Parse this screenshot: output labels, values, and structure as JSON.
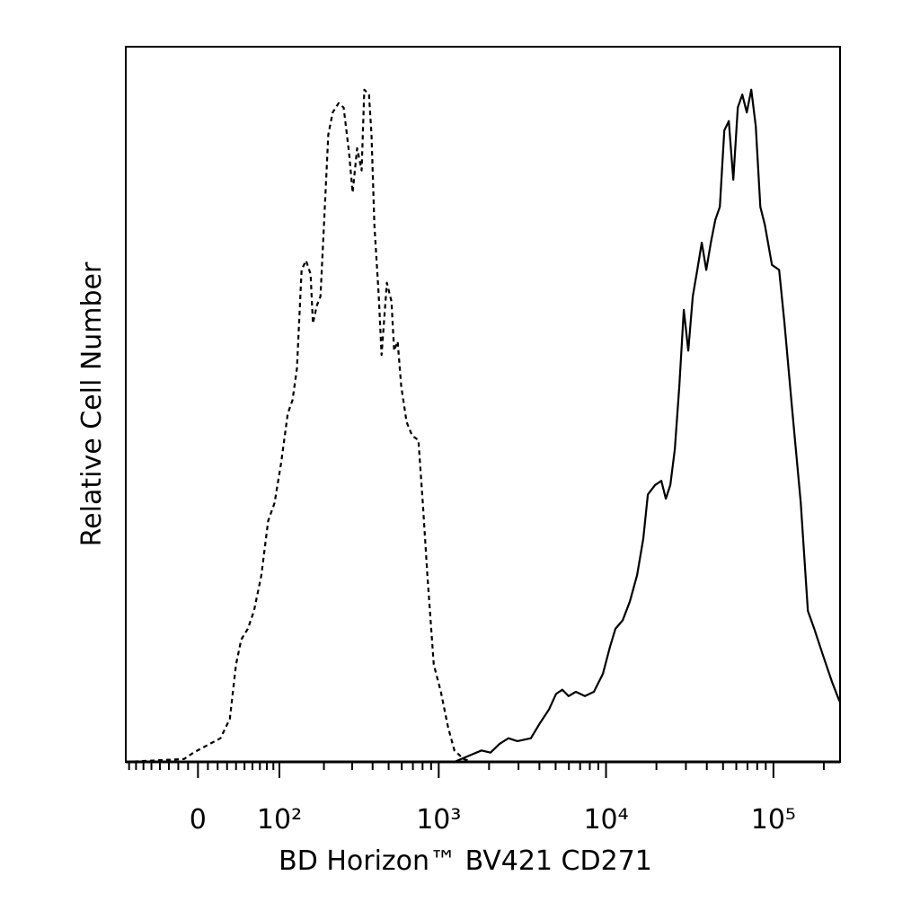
{
  "chart_data": {
    "type": "histogram-overlay",
    "xlabel": "BD Horizon™ BV421 CD271",
    "ylabel": "Relative Cell Number",
    "xscale": "biexponential",
    "xlim": [
      -85,
      250000
    ],
    "ylim": [
      0,
      100
    ],
    "xticks": [
      0,
      {
        "value": 100,
        "label": "10²"
      },
      {
        "value": 1000,
        "label": "10³"
      },
      {
        "value": 10000,
        "label": "10⁴"
      },
      {
        "value": 100000,
        "label": "10⁵"
      }
    ],
    "xminorticks": [
      -80,
      -70,
      -60,
      -50,
      -40,
      -30,
      -20,
      -10,
      10,
      20,
      30,
      40,
      50,
      60,
      70,
      80,
      90,
      200,
      300,
      400,
      500,
      600,
      700,
      800,
      900,
      2000,
      3000,
      4000,
      5000,
      6000,
      7000,
      8000,
      9000,
      20000,
      30000,
      40000,
      50000,
      60000,
      70000,
      80000,
      90000,
      200000
    ],
    "series": [
      {
        "color": "#000000",
        "dash": "dashed",
        "x": [
          -85,
          -14,
          -4.5,
          9.1,
          23,
          33,
          40,
          46,
          54,
          62,
          72,
          82,
          92,
          103,
          115,
          124,
          133,
          143,
          153,
          164,
          170,
          180,
          190,
          200,
          213,
          227,
          247,
          266,
          287,
          302,
          322,
          343,
          356,
          380,
          394,
          410,
          436,
          453,
          488,
          520,
          540,
          567,
          596,
          642,
          693,
          755,
          803,
          855,
          934,
          1030,
          1139,
          1241,
          1409,
          1591,
          250000
        ],
        "values": [
          0,
          0.4,
          1.3,
          2.3,
          3.3,
          6.0,
          13.6,
          17.1,
          18.6,
          21.1,
          26.1,
          33.7,
          36.2,
          41.8,
          48.7,
          50.6,
          55.0,
          68.8,
          70.1,
          68.2,
          61.3,
          63.8,
          65.1,
          75.1,
          87.7,
          90.8,
          92.1,
          91.5,
          85.2,
          79.6,
          85.8,
          82.7,
          94.0,
          93.3,
          87.7,
          75.1,
          65.1,
          56.9,
          67.0,
          64.4,
          57.5,
          58.8,
          52.5,
          47.5,
          45.6,
          45.0,
          36.2,
          26.1,
          13.6,
          9.8,
          4.8,
          1.6,
          0.4,
          0,
          0
        ]
      },
      {
        "color": "#000000",
        "dash": "solid",
        "x": [
          -85,
          1241,
          1497,
          1803,
          2040,
          2307,
          2610,
          2955,
          3556,
          4024,
          4555,
          5029,
          5483,
          5979,
          6600,
          7472,
          8459,
          9569,
          10564,
          11385,
          12571,
          13876,
          15320,
          16700,
          17770,
          19615,
          21390,
          22760,
          24220,
          25770,
          27400,
          29150,
          31010,
          32990,
          35100,
          37340,
          39720,
          42260,
          44960,
          47830,
          50890,
          54140,
          57590,
          61270,
          65180,
          69340,
          73770,
          78480,
          83490,
          88820,
          98020,
          108180,
          116500,
          128600,
          145600,
          160700,
          175300,
          198300,
          224500,
          247800
        ],
        "values": [
          0,
          0,
          0.8,
          1.6,
          1.3,
          2.5,
          3.3,
          2.9,
          3.3,
          5.4,
          7.3,
          9.5,
          10.1,
          9.2,
          9.8,
          9.2,
          9.8,
          12.3,
          16.1,
          18.6,
          19.8,
          22.4,
          26.1,
          31.2,
          37.4,
          38.7,
          39.3,
          36.8,
          38.7,
          43.7,
          52.5,
          63.2,
          57.5,
          65.1,
          68.8,
          72.6,
          68.8,
          72.6,
          75.8,
          77.6,
          88.3,
          89.6,
          81.4,
          91.5,
          93.3,
          90.8,
          94.0,
          88.9,
          77.6,
          75.1,
          69.5,
          68.8,
          61.3,
          50.0,
          36.2,
          21.1,
          18.6,
          14.8,
          11.1,
          8.5
        ]
      }
    ]
  }
}
